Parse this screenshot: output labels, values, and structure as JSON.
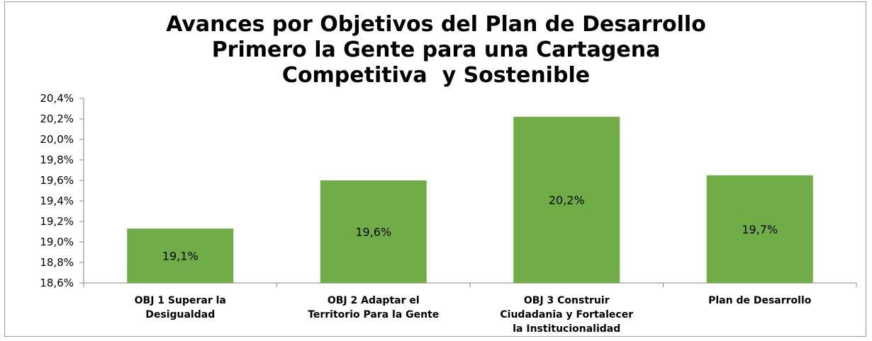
{
  "chart_data": {
    "type": "bar",
    "title": [
      "Avances por Objetivos del Plan de Desarrollo",
      "Primero la Gente para una Cartagena",
      "Competitiva  y Sostenible"
    ],
    "categories": [
      [
        "OBJ 1 Superar la",
        "Desigualdad"
      ],
      [
        "OBJ 2 Adaptar el",
        "Territorio Para la Gente"
      ],
      [
        "OBJ 3 Construir",
        "Ciudadania y Fortalecer",
        "la Institucionalidad"
      ],
      [
        "Plan de Desarrollo"
      ]
    ],
    "values": [
      19.13,
      19.6,
      20.22,
      19.65
    ],
    "data_labels": [
      "19,1%",
      "19,6%",
      "20,2%",
      "19,7%"
    ],
    "ylim": [
      18.6,
      20.4
    ],
    "yticks": [
      18.6,
      18.8,
      19.0,
      19.2,
      19.4,
      19.6,
      19.8,
      20.0,
      20.2,
      20.4
    ],
    "ytick_labels": [
      "18,6%",
      "18,8%",
      "19,0%",
      "19,2%",
      "19,4%",
      "19,6%",
      "19,8%",
      "20,0%",
      "20,2%",
      "20,4%"
    ],
    "xlabel": "",
    "ylabel": "",
    "grid": false,
    "bar_color": "#70ad47",
    "axis_color": "#868686"
  }
}
